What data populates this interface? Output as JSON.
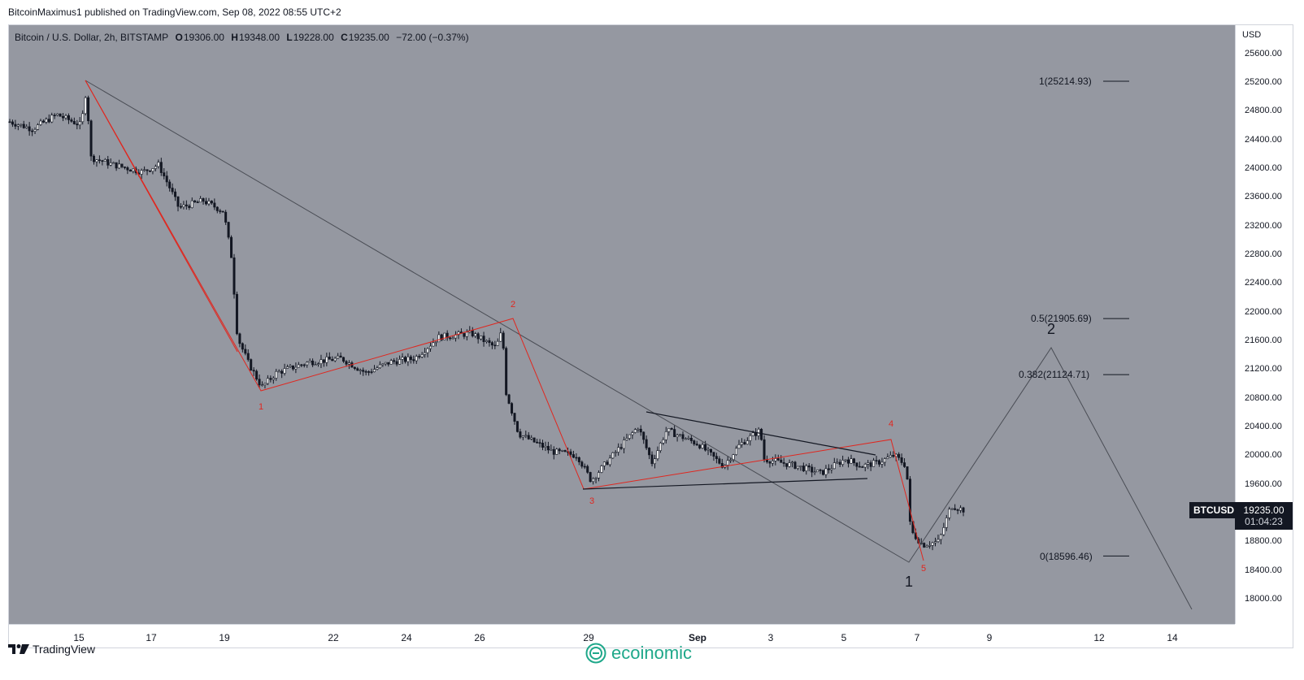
{
  "header": {
    "publisher_line": "BitcoinMaximus1 published on TradingView.com, Sep 08, 2022 08:55 UTC+2"
  },
  "legend": {
    "symbol": "Bitcoin / U.S. Dollar, 2h, BITSTAMP",
    "open_key": "O",
    "open": "19306.00",
    "high_key": "H",
    "high": "19348.00",
    "low_key": "L",
    "low": "19228.00",
    "close_key": "C",
    "close": "19235.00",
    "change": "−72.00 (−0.37%)"
  },
  "price_axis": {
    "currency": "USD",
    "ticks": [
      "25600.00",
      "25200.00",
      "24800.00",
      "24400.00",
      "24000.00",
      "23600.00",
      "23200.00",
      "22800.00",
      "22400.00",
      "22000.00",
      "21600.00",
      "21200.00",
      "20800.00",
      "20400.00",
      "20000.00",
      "19600.00",
      "19200.00",
      "18800.00",
      "18400.00",
      "18000.00"
    ],
    "tick_values": [
      25600,
      25200,
      24800,
      24400,
      24000,
      23600,
      23200,
      22800,
      22400,
      22000,
      21600,
      21200,
      20800,
      20400,
      20000,
      19600,
      19200,
      18800,
      18400,
      18000
    ]
  },
  "time_axis": {
    "ticks": [
      "15",
      "17",
      "19",
      "22",
      "24",
      "26",
      "29",
      "Sep",
      "3",
      "5",
      "7",
      "9",
      "12",
      "14"
    ]
  },
  "fib_levels": [
    {
      "label": "1(25214.93)",
      "value": 25214.93
    },
    {
      "label": "0.5(21905.69)",
      "value": 21905.69
    },
    {
      "label": "0.382(21124.71)",
      "value": 21124.71
    },
    {
      "label": "0(18596.46)",
      "value": 18596.46
    }
  ],
  "wave_labels": [
    "1",
    "2",
    "3",
    "4",
    "5"
  ],
  "major_waves": [
    "1",
    "2"
  ],
  "last_price": {
    "symbol": "BTCUSD",
    "price": "19235.00",
    "countdown": "01:04:23"
  },
  "footer": {
    "tradingview_label": "TradingView",
    "watermark": "ecoinomic"
  },
  "colors": {
    "plot_bg": "#9598a1",
    "candle_up": "#ffffff",
    "candle_down": "#131722",
    "wave_red": "#e0271f",
    "trend_gray": "#4a4d55",
    "brand_green": "#1fa88a"
  },
  "icons": [
    "tradingview-logo-icon",
    "ecoinomic-logo-icon"
  ]
}
